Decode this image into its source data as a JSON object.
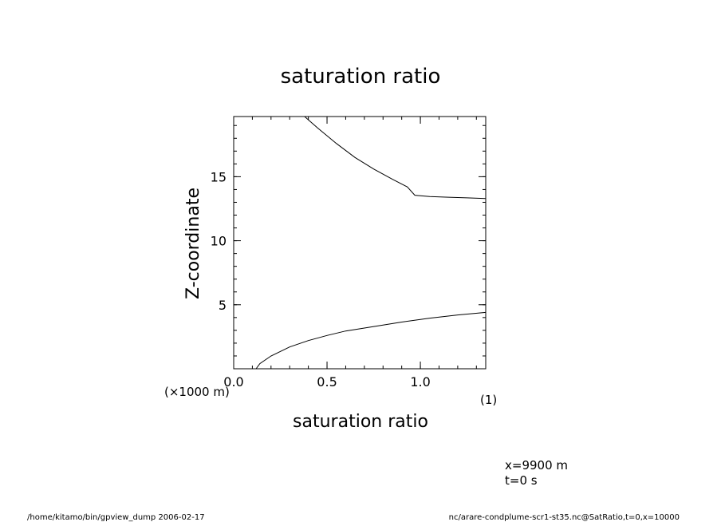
{
  "chart_data": {
    "type": "line",
    "title": "saturation ratio",
    "xlabel": "saturation ratio",
    "ylabel": "Z-coordinate",
    "x_unit": "(1)",
    "y_unit": "(×1000 m)",
    "xlim": [
      0.0,
      1.35
    ],
    "ylim": [
      0.0,
      19.7
    ],
    "x_ticks": [
      {
        "value": 0.0,
        "label": "0.0"
      },
      {
        "value": 0.5,
        "label": "0.5"
      },
      {
        "value": 1.0,
        "label": "1.0"
      }
    ],
    "y_ticks": [
      {
        "value": 5,
        "label": "5"
      },
      {
        "value": 10,
        "label": "10"
      },
      {
        "value": 15,
        "label": "15"
      }
    ],
    "x_minor_step": 0.1,
    "y_minor_step": 1,
    "series": [
      {
        "x": [
          0.38,
          0.45,
          0.55,
          0.65,
          0.75,
          0.85,
          0.93,
          0.97,
          1.05,
          1.15,
          1.25,
          1.35
        ],
        "y": [
          19.7,
          18.8,
          17.6,
          16.5,
          15.6,
          14.8,
          14.2,
          13.55,
          13.45,
          13.4,
          13.35,
          13.3
        ]
      },
      {
        "x": [
          0.12,
          0.14,
          0.2,
          0.3,
          0.4,
          0.5,
          0.6,
          0.75,
          0.9,
          1.05,
          1.2,
          1.35
        ],
        "y": [
          0.0,
          0.4,
          1.0,
          1.7,
          2.2,
          2.6,
          2.95,
          3.3,
          3.65,
          3.95,
          4.2,
          4.4
        ]
      }
    ]
  },
  "annotations": {
    "position_x": "x=9900 m",
    "time": "t=0 s"
  },
  "footer": {
    "left": "/home/kitamo/bin/gpview_dump  2006-02-17",
    "right": "nc/arare-condplume-scr1-st35.nc@SatRatio,t=0,x=10000"
  }
}
